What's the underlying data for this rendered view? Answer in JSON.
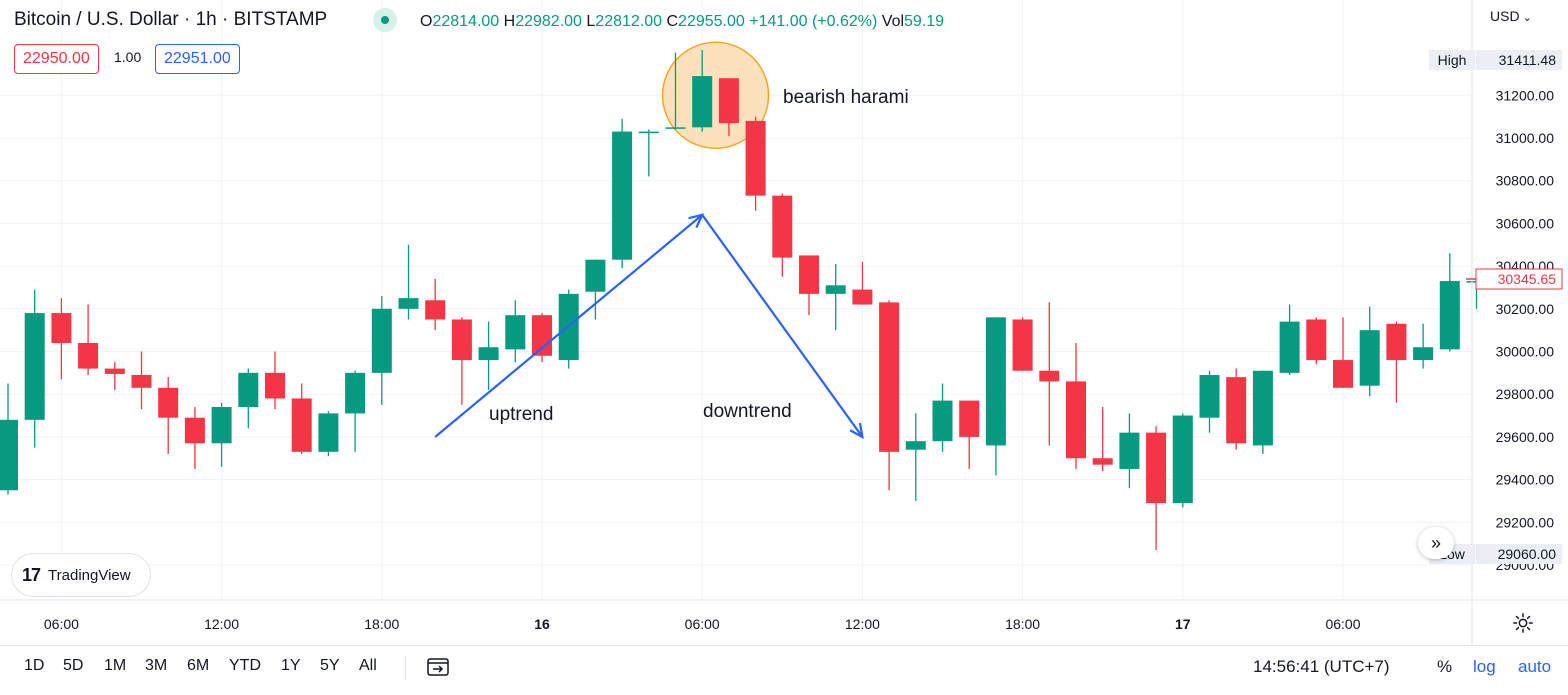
{
  "header": {
    "symbol_title": "Bitcoin / U.S. Dollar · 1h · BITSTAMP",
    "ohlc": {
      "o_label": "O",
      "o_value": "22814.00",
      "h_label": "H",
      "h_value": "22982.00",
      "l_label": "L",
      "l_value": "22812.00",
      "c_label": "C",
      "c_value": "22955.00",
      "change": "+141.00 (+0.62%)",
      "vol_label": "Vol",
      "vol_value": "59.19"
    },
    "sell_price": "22950.00",
    "quantity": "1.00",
    "buy_price": "22951.00",
    "currency": "USD"
  },
  "watermark": {
    "name": "TradingView",
    "mark": "17"
  },
  "bottom_bar": {
    "ranges": [
      "1D",
      "5D",
      "1M",
      "3M",
      "6M",
      "YTD",
      "1Y",
      "5Y",
      "All"
    ],
    "clock": "14:56:41 (UTC+7)",
    "percent_label": "%",
    "log_label": "log",
    "auto_label": "auto"
  },
  "colors": {
    "up": "#089981",
    "down": "#f23645",
    "arrow": "#2962ff",
    "highlight_fill": "#fcd9ab",
    "highlight_stroke": "#f5a623",
    "grid": "#f0f3fa"
  },
  "chart_data": {
    "type": "candlestick",
    "interval": "1h",
    "y_axis": {
      "ticks": [
        29000,
        29200,
        29400,
        29600,
        29800,
        30000,
        30200,
        30400,
        30600,
        30800,
        31000,
        31200
      ],
      "tick_labels": [
        "29000.00",
        "29200.00",
        "29400.00",
        "29600.00",
        "29800.00",
        "30000.00",
        "30200.00",
        "30400.00",
        "30600.00",
        "30800.00",
        "31000.00",
        "31200.00"
      ],
      "markers": [
        {
          "label": "High",
          "value": "31411.48"
        },
        {
          "label": "Low",
          "value": "29060.00"
        },
        {
          "label": "",
          "value": "30345.65"
        }
      ]
    },
    "x_axis": {
      "ticks": [
        {
          "index": 2,
          "label": "06:00",
          "bold": false
        },
        {
          "index": 8,
          "label": "12:00",
          "bold": false
        },
        {
          "index": 14,
          "label": "18:00",
          "bold": false
        },
        {
          "index": 20,
          "label": "16",
          "bold": true
        },
        {
          "index": 26,
          "label": "06:00",
          "bold": false
        },
        {
          "index": 32,
          "label": "12:00",
          "bold": false
        },
        {
          "index": 38,
          "label": "18:00",
          "bold": false
        },
        {
          "index": 44,
          "label": "17",
          "bold": true
        },
        {
          "index": 50,
          "label": "06:00",
          "bold": false
        }
      ]
    },
    "candles": [
      [
        29350,
        29850,
        29330,
        29680
      ],
      [
        29680,
        30290,
        29550,
        30180
      ],
      [
        30180,
        30250,
        29870,
        30040
      ],
      [
        30040,
        30220,
        29890,
        29920
      ],
      [
        29920,
        29950,
        29820,
        29895
      ],
      [
        29890,
        30000,
        29730,
        29830
      ],
      [
        29830,
        29880,
        29520,
        29690
      ],
      [
        29690,
        29740,
        29450,
        29570
      ],
      [
        29570,
        29760,
        29460,
        29740
      ],
      [
        29740,
        29920,
        29640,
        29900
      ],
      [
        29900,
        30000,
        29730,
        29780
      ],
      [
        29780,
        29850,
        29520,
        29530
      ],
      [
        29530,
        29720,
        29510,
        29710
      ],
      [
        29710,
        29910,
        29530,
        29900
      ],
      [
        29900,
        30260,
        29750,
        30200
      ],
      [
        30200,
        30500,
        30150,
        30250
      ],
      [
        30240,
        30340,
        30100,
        30150
      ],
      [
        30150,
        30160,
        29750,
        29960
      ],
      [
        29960,
        30140,
        29820,
        30020
      ],
      [
        30010,
        30240,
        29950,
        30170
      ],
      [
        30170,
        30180,
        29950,
        29980
      ],
      [
        29960,
        30290,
        29920,
        30270
      ],
      [
        30280,
        30430,
        30150,
        30430
      ],
      [
        30430,
        31090,
        30390,
        31030
      ],
      [
        31030,
        31040,
        30820,
        31030
      ],
      [
        31050,
        31400,
        31040,
        31050
      ],
      [
        31050,
        31412,
        31030,
        31290
      ],
      [
        31280,
        31270,
        31010,
        31070
      ],
      [
        31080,
        31100,
        30660,
        30730
      ],
      [
        30730,
        30740,
        30350,
        30440
      ],
      [
        30450,
        30450,
        30170,
        30270
      ],
      [
        30270,
        30410,
        30100,
        30310
      ],
      [
        30290,
        30420,
        30220,
        30220
      ],
      [
        30230,
        30240,
        29350,
        29530
      ],
      [
        29540,
        29710,
        29300,
        29580
      ],
      [
        29580,
        29850,
        29530,
        29770
      ],
      [
        29770,
        29770,
        29450,
        29600
      ],
      [
        29560,
        30160,
        29420,
        30160
      ],
      [
        30150,
        30160,
        29910,
        29910
      ],
      [
        29910,
        30230,
        29560,
        29860
      ],
      [
        29860,
        30040,
        29450,
        29500
      ],
      [
        29500,
        29740,
        29440,
        29470
      ],
      [
        29450,
        29710,
        29360,
        29620
      ],
      [
        29620,
        29650,
        29070,
        29290
      ],
      [
        29290,
        29710,
        29270,
        29700
      ],
      [
        29690,
        29910,
        29620,
        29890
      ],
      [
        29880,
        29920,
        29540,
        29570
      ],
      [
        29560,
        29910,
        29520,
        29910
      ],
      [
        29900,
        30220,
        29890,
        30140
      ],
      [
        30150,
        30160,
        29940,
        29960
      ],
      [
        29960,
        30160,
        29830,
        29830
      ],
      [
        29840,
        30210,
        29790,
        30100
      ],
      [
        30130,
        30140,
        29760,
        29960
      ],
      [
        29960,
        30130,
        29920,
        30020
      ],
      [
        30010,
        30460,
        30000,
        30330
      ],
      [
        30330,
        30340,
        30200,
        30330
      ]
    ],
    "annotations": [
      {
        "type": "arrow",
        "label": "uptrend",
        "from": {
          "index": 16,
          "price": 29600
        },
        "to": {
          "index": 26,
          "price": 30640
        }
      },
      {
        "type": "arrow",
        "label": "downtrend",
        "from": {
          "index": 26,
          "price": 30640
        },
        "to": {
          "index": 32,
          "price": 29600
        }
      },
      {
        "type": "circle",
        "label": "bearish harami",
        "center": {
          "index": 26.5,
          "price": 31200
        }
      }
    ]
  }
}
